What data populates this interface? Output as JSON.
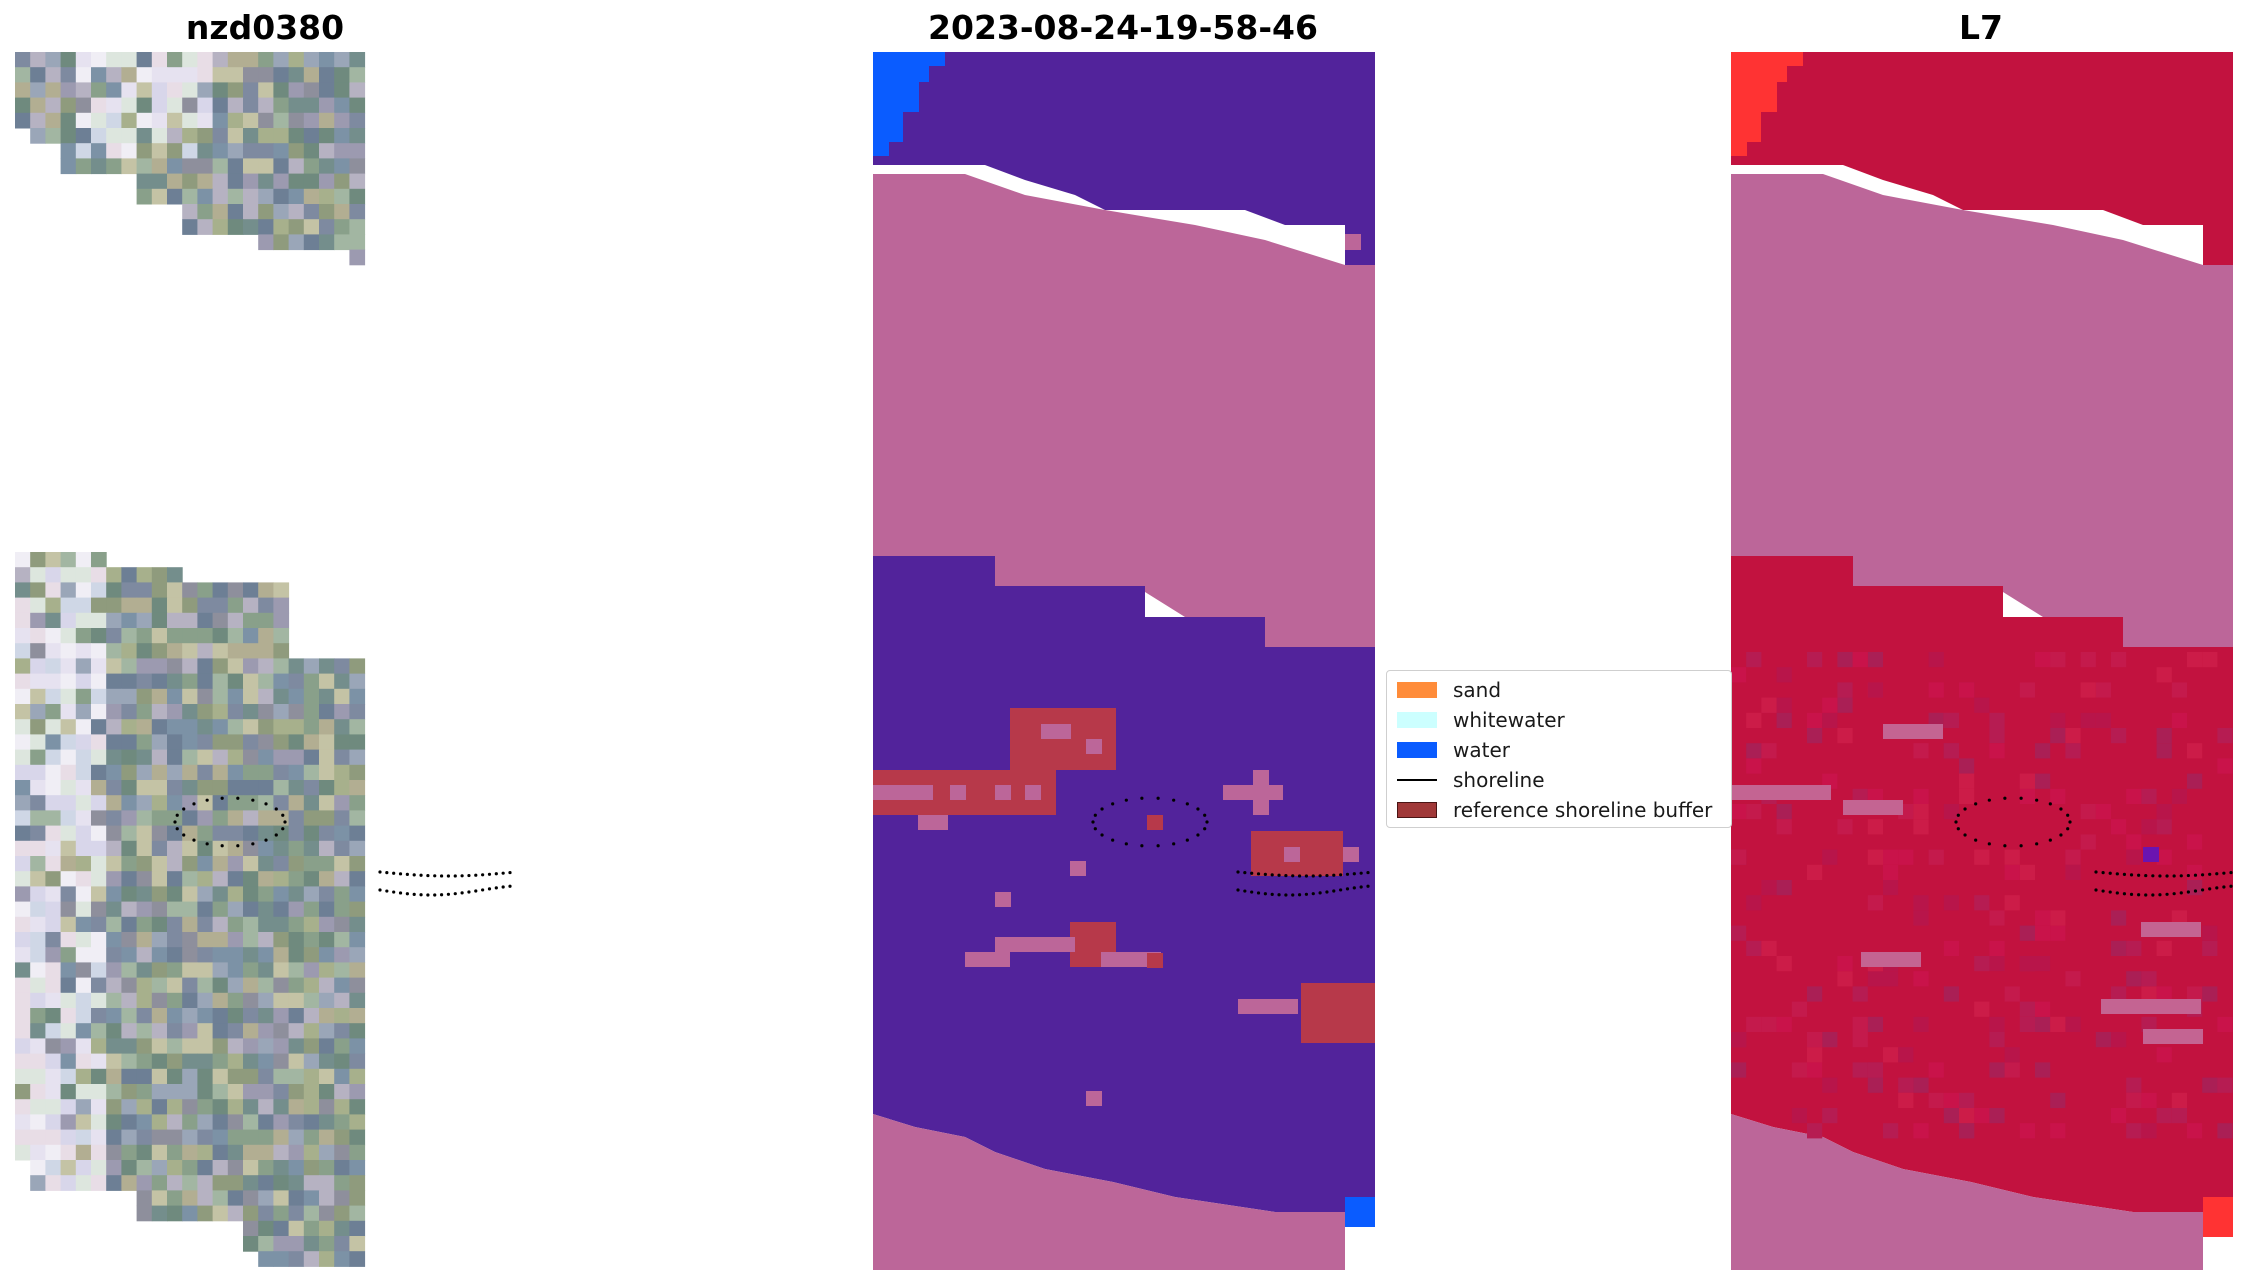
{
  "panels": [
    {
      "title": "nzd0380"
    },
    {
      "title": "2023-08-24-19-58-46"
    },
    {
      "title": "L7"
    }
  ],
  "legend": {
    "items": [
      {
        "label": "sand",
        "color": "#ff8c3a",
        "kind": "patch"
      },
      {
        "label": "whitewater",
        "color": "#ccffff",
        "kind": "patch"
      },
      {
        "label": "water",
        "color": "#0a5cff",
        "kind": "patch"
      },
      {
        "label": "shoreline",
        "color": "#000000",
        "kind": "line"
      },
      {
        "label": "reference shoreline buffer",
        "color": "#a03838",
        "kind": "patch"
      }
    ]
  },
  "colors": {
    "water_class": "#52239b",
    "sand_class": "#bc6699",
    "buffer": "#b7394a",
    "water_blue": "#0a5cff",
    "index_red": "#c2123f",
    "index_bright": "#ff3333"
  }
}
